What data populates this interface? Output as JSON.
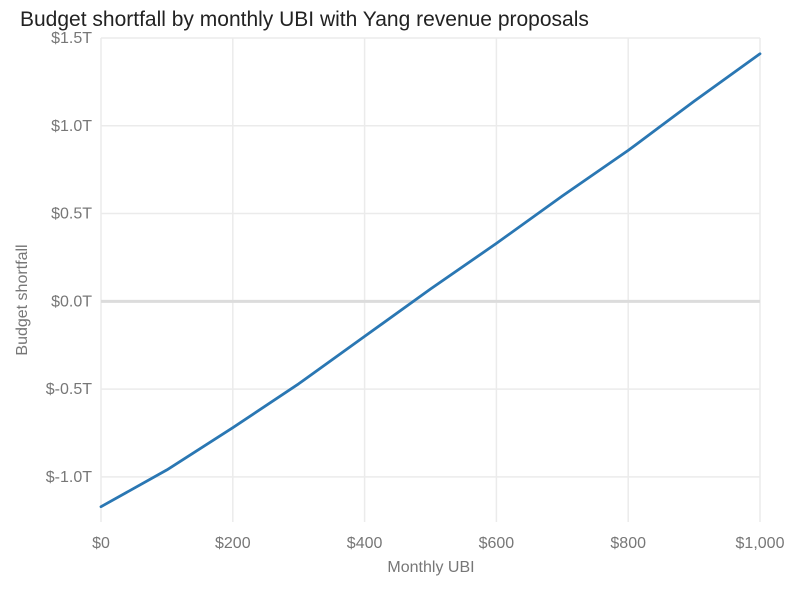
{
  "chart_data": {
    "type": "line",
    "title": "Budget shortfall by monthly UBI with Yang revenue proposals",
    "xlabel": "Monthly UBI",
    "ylabel": "Budget shortfall",
    "xlim": [
      0,
      1000
    ],
    "ylim": [
      -1.2,
      1.5
    ],
    "xticks": [
      0,
      200,
      400,
      600,
      800,
      1000
    ],
    "xtick_labels": [
      "$0",
      "$200",
      "$400",
      "$600",
      "$800",
      "$1,000"
    ],
    "yticks": [
      -1.0,
      -0.5,
      0.0,
      0.5,
      1.0,
      1.5
    ],
    "ytick_labels": [
      "$-1.0T",
      "$-0.5T",
      "$0.0T",
      "$0.5T",
      "$1.0T",
      "$1.5T"
    ],
    "grid": true,
    "series": [
      {
        "color": "#2a77b3",
        "x": [
          0,
          100,
          200,
          300,
          400,
          500,
          600,
          700,
          800,
          900,
          1000
        ],
        "y": [
          -1.17,
          -0.96,
          -0.72,
          -0.47,
          -0.2,
          0.07,
          0.33,
          0.6,
          0.86,
          1.14,
          1.41
        ]
      }
    ]
  }
}
